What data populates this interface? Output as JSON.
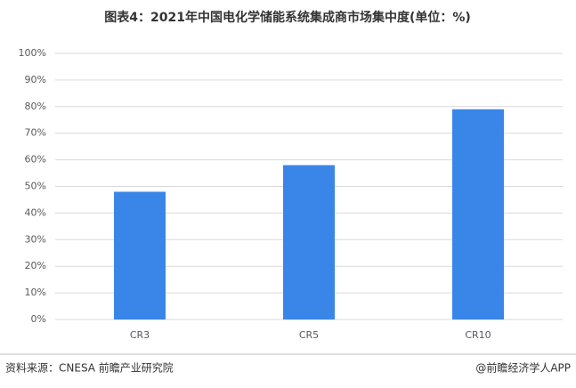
{
  "chart_data": {
    "type": "bar",
    "title": "图表4：2021年中国电化学储能系统集成商市场集中度(单位：%)",
    "categories": [
      "CR3",
      "CR5",
      "CR10"
    ],
    "values": [
      48,
      58,
      79
    ],
    "color": "#3a86e8",
    "ylim": [
      0,
      100
    ],
    "yticks": [
      {
        "value": 0,
        "label": "0%"
      },
      {
        "value": 10,
        "label": "10%"
      },
      {
        "value": 20,
        "label": "20%"
      },
      {
        "value": 30,
        "label": "30%"
      },
      {
        "value": 40,
        "label": "40%"
      },
      {
        "value": 50,
        "label": "50%"
      },
      {
        "value": 60,
        "label": "60%"
      },
      {
        "value": 70,
        "label": "70%"
      },
      {
        "value": 80,
        "label": "80%"
      },
      {
        "value": 90,
        "label": "90%"
      },
      {
        "value": 100,
        "label": "100%"
      }
    ],
    "grid": true,
    "source": "资料来源：CNESA 前瞻产业研究院",
    "credit": "@前瞻经济学人APP"
  }
}
